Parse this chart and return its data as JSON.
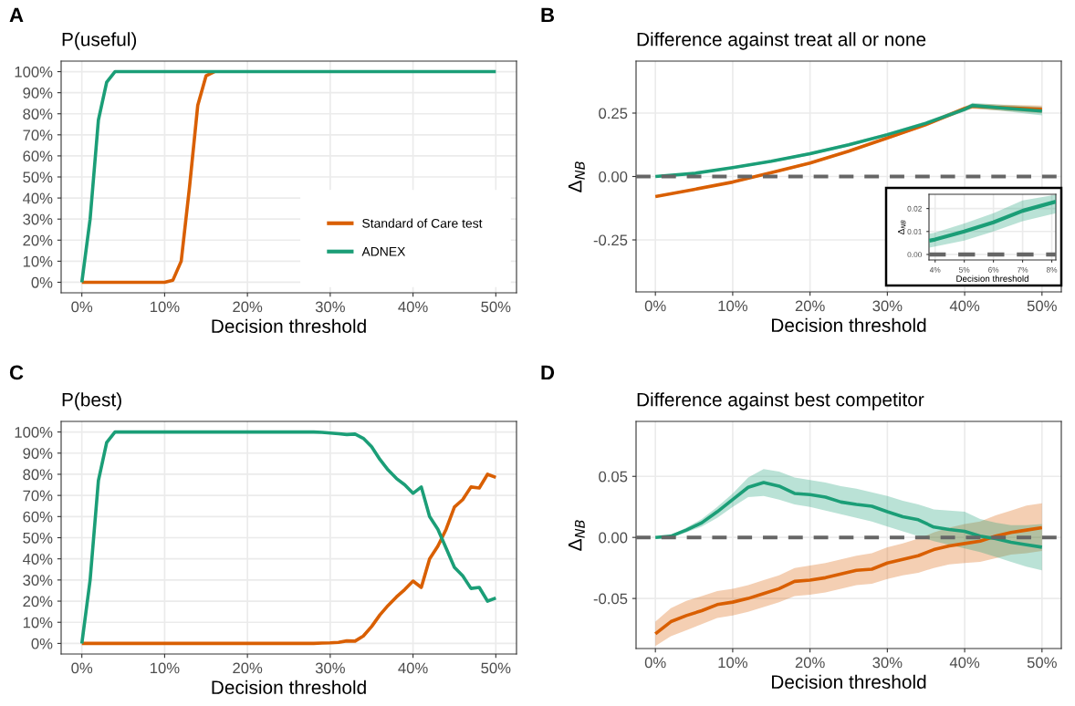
{
  "chart_data": [
    {
      "type": "line",
      "title": "P(useful)",
      "xlabel": "Decision threshold",
      "annotations": [
        "A"
      ],
      "legend": "bottom right",
      "grid": true,
      "xlim": [
        -2.5,
        52.5
      ],
      "xticks": [
        {
          "value": 0,
          "label": "0%"
        },
        {
          "value": 10,
          "label": "10%"
        },
        {
          "value": 20,
          "label": "20%"
        },
        {
          "value": 30,
          "label": "30%"
        },
        {
          "value": 40,
          "label": "40%"
        },
        {
          "value": 50,
          "label": "50%"
        }
      ],
      "ylim": [
        -5,
        105
      ],
      "yticks": [
        {
          "value": 0,
          "label": "0%"
        },
        {
          "value": 10,
          "label": "10%"
        },
        {
          "value": 20,
          "label": "20%"
        },
        {
          "value": 30,
          "label": "30%"
        },
        {
          "value": 40,
          "label": "40%"
        },
        {
          "value": 50,
          "label": "50%"
        },
        {
          "value": 60,
          "label": "60%"
        },
        {
          "value": 70,
          "label": "70%"
        },
        {
          "value": 80,
          "label": "80%"
        },
        {
          "value": 90,
          "label": "90%"
        },
        {
          "value": 100,
          "label": "100%"
        }
      ],
      "series": [
        {
          "name": "Standard of Care test",
          "color": "#d95f02",
          "x": [
            0,
            5,
            10,
            11,
            12,
            13,
            14,
            15,
            16
          ],
          "values": [
            0,
            0,
            0,
            1,
            10,
            45,
            84,
            98,
            100
          ]
        },
        {
          "name": "ADNEX",
          "color": "#1b9e77",
          "x": [
            0,
            1,
            2,
            3,
            4,
            5,
            50
          ],
          "values": [
            0,
            30,
            77,
            95,
            100,
            100,
            100
          ]
        }
      ]
    },
    {
      "type": "line",
      "title": "Difference against treat all or none",
      "xlabel": "Decision threshold",
      "ylabel": "Δ$_{NB}$",
      "annotations": [
        "B"
      ],
      "grid": true,
      "xlim": [
        -2.5,
        52.5
      ],
      "xticks": [
        {
          "value": 0,
          "label": "0%"
        },
        {
          "value": 10,
          "label": "10%"
        },
        {
          "value": 20,
          "label": "20%"
        },
        {
          "value": 30,
          "label": "30%"
        },
        {
          "value": 40,
          "label": "40%"
        },
        {
          "value": 50,
          "label": "50%"
        }
      ],
      "ylim": [
        -0.455,
        0.455
      ],
      "yticks": [
        {
          "value": -0.25,
          "label": "-0.25"
        },
        {
          "value": 0,
          "label": "0.00"
        },
        {
          "value": 0.25,
          "label": "0.25"
        }
      ],
      "ref_lines": [
        {
          "axis": "y",
          "value": 0,
          "color": "#666666",
          "line_style": "dashed"
        }
      ],
      "series": [
        {
          "color": "#d95f02",
          "x": [
            0,
            5,
            10,
            15,
            20,
            25,
            30,
            35,
            40,
            41,
            45,
            50
          ],
          "values": [
            -0.079,
            -0.051,
            -0.022,
            0.015,
            0.053,
            0.1,
            0.152,
            0.205,
            0.268,
            0.277,
            0.271,
            0.265
          ],
          "lower": [
            -0.083,
            -0.055,
            -0.026,
            0.01,
            0.048,
            0.095,
            0.146,
            0.198,
            0.259,
            0.267,
            0.259,
            0.25
          ],
          "upper": [
            -0.075,
            -0.047,
            -0.018,
            0.02,
            0.058,
            0.105,
            0.158,
            0.212,
            0.277,
            0.287,
            0.283,
            0.28
          ]
        },
        {
          "color": "#1b9e77",
          "x": [
            0,
            5,
            10,
            15,
            20,
            25,
            30,
            35,
            40,
            41,
            45,
            50
          ],
          "values": [
            0,
            0.012,
            0.035,
            0.06,
            0.09,
            0.125,
            0.165,
            0.21,
            0.265,
            0.28,
            0.27,
            0.258
          ],
          "lower": [
            -0.002,
            0.008,
            0.03,
            0.055,
            0.084,
            0.119,
            0.158,
            0.202,
            0.256,
            0.27,
            0.258,
            0.241
          ],
          "upper": [
            0.002,
            0.016,
            0.04,
            0.065,
            0.096,
            0.131,
            0.172,
            0.218,
            0.274,
            0.29,
            0.282,
            0.275
          ]
        }
      ]
    },
    {
      "type": "line",
      "title": "P(best)",
      "xlabel": "Decision threshold",
      "annotations": [
        "C"
      ],
      "grid": true,
      "xlim": [
        -2.5,
        52.5
      ],
      "xticks": [
        {
          "value": 0,
          "label": "0%"
        },
        {
          "value": 10,
          "label": "10%"
        },
        {
          "value": 20,
          "label": "20%"
        },
        {
          "value": 30,
          "label": "30%"
        },
        {
          "value": 40,
          "label": "40%"
        },
        {
          "value": 50,
          "label": "50%"
        }
      ],
      "ylim": [
        -5,
        105
      ],
      "yticks": [
        {
          "value": 0,
          "label": "0%"
        },
        {
          "value": 10,
          "label": "10%"
        },
        {
          "value": 20,
          "label": "20%"
        },
        {
          "value": 30,
          "label": "30%"
        },
        {
          "value": 40,
          "label": "40%"
        },
        {
          "value": 50,
          "label": "50%"
        },
        {
          "value": 60,
          "label": "60%"
        },
        {
          "value": 70,
          "label": "70%"
        },
        {
          "value": 80,
          "label": "80%"
        },
        {
          "value": 90,
          "label": "90%"
        },
        {
          "value": 100,
          "label": "100%"
        }
      ],
      "series": [
        {
          "color": "#d95f02",
          "x": [
            0,
            28,
            29,
            30,
            31,
            32,
            33,
            34,
            35,
            36,
            37,
            38,
            39,
            40,
            41,
            42,
            43,
            44,
            45,
            46,
            47,
            48,
            49,
            50
          ],
          "values": [
            0,
            0,
            0.2,
            0.3,
            0.5,
            1.2,
            1.1,
            3.5,
            8,
            13.5,
            18,
            22,
            25.5,
            29.5,
            26.5,
            40,
            46,
            54,
            64.5,
            68,
            74,
            73.5,
            80,
            78.5
          ]
        },
        {
          "color": "#1b9e77",
          "x": [
            0,
            1,
            2,
            3,
            4,
            28,
            29,
            30,
            31,
            32,
            33,
            34,
            35,
            36,
            37,
            38,
            39,
            40,
            41,
            42,
            43,
            44,
            45,
            46,
            47,
            48,
            49,
            50
          ],
          "values": [
            0,
            30,
            77,
            95,
            100,
            100,
            99.8,
            99.5,
            99.2,
            98.8,
            99,
            97,
            93,
            87,
            82,
            78,
            75,
            71,
            74,
            60,
            54,
            45,
            36,
            32,
            26,
            26.5,
            20,
            21.5
          ]
        }
      ]
    },
    {
      "type": "line",
      "title": "Difference against best competitor",
      "xlabel": "Decision threshold",
      "ylabel": "Δ$_{NB}$",
      "annotations": [
        "D"
      ],
      "grid": true,
      "xlim": [
        -2.5,
        52.5
      ],
      "xticks": [
        {
          "value": 0,
          "label": "0%"
        },
        {
          "value": 10,
          "label": "10%"
        },
        {
          "value": 20,
          "label": "20%"
        },
        {
          "value": 30,
          "label": "30%"
        },
        {
          "value": 40,
          "label": "40%"
        },
        {
          "value": 50,
          "label": "50%"
        }
      ],
      "ylim": [
        -0.091,
        0.095
      ],
      "yticks": [
        {
          "value": -0.05,
          "label": "-0.05"
        },
        {
          "value": 0,
          "label": "0.00"
        },
        {
          "value": 0.05,
          "label": "0.05"
        }
      ],
      "ref_lines": [
        {
          "axis": "y",
          "value": 0,
          "color": "#666666",
          "line_style": "dashed"
        }
      ],
      "series": [
        {
          "color": "#d95f02",
          "x": [
            0,
            2,
            4,
            6,
            8,
            10,
            12,
            14,
            16,
            18,
            20,
            22,
            24,
            26,
            28,
            30,
            32,
            34,
            36,
            38,
            40,
            42,
            44,
            46,
            48,
            50
          ],
          "values": [
            -0.079,
            -0.069,
            -0.064,
            -0.06,
            -0.055,
            -0.053,
            -0.05,
            -0.046,
            -0.042,
            -0.036,
            -0.035,
            -0.033,
            -0.03,
            -0.027,
            -0.026,
            -0.021,
            -0.018,
            -0.015,
            -0.01,
            -0.007,
            -0.005,
            -0.003,
            0.001,
            0.004,
            0.006,
            0.008
          ],
          "lower": [
            -0.089,
            -0.081,
            -0.076,
            -0.071,
            -0.066,
            -0.064,
            -0.061,
            -0.057,
            -0.053,
            -0.048,
            -0.047,
            -0.045,
            -0.042,
            -0.039,
            -0.038,
            -0.034,
            -0.031,
            -0.029,
            -0.025,
            -0.022,
            -0.021,
            -0.02,
            -0.017,
            -0.014,
            -0.013,
            -0.011
          ],
          "upper": [
            -0.069,
            -0.058,
            -0.052,
            -0.048,
            -0.044,
            -0.042,
            -0.039,
            -0.035,
            -0.031,
            -0.025,
            -0.023,
            -0.021,
            -0.018,
            -0.015,
            -0.013,
            -0.008,
            -0.005,
            -0.001,
            0.004,
            0.008,
            0.011,
            0.013,
            0.018,
            0.022,
            0.026,
            0.028
          ]
        },
        {
          "color": "#1b9e77",
          "x": [
            0,
            2,
            4,
            6,
            8,
            10,
            12,
            14,
            16,
            18,
            20,
            22,
            24,
            26,
            28,
            30,
            32,
            34,
            36,
            38,
            40,
            42,
            44,
            46,
            48,
            50
          ],
          "values": [
            0,
            0.001,
            0.006,
            0.012,
            0.021,
            0.031,
            0.041,
            0.045,
            0.042,
            0.036,
            0.035,
            0.033,
            0.029,
            0.027,
            0.0255,
            0.021,
            0.017,
            0.0145,
            0.0085,
            0.0065,
            0.005,
            0.001,
            -0.001,
            -0.004,
            -0.006,
            -0.008
          ],
          "lower": [
            0,
            0,
            0.004,
            0.009,
            0.016,
            0.025,
            0.033,
            0.034,
            0.031,
            0.027,
            0.025,
            0.022,
            0.019,
            0.016,
            0.013,
            0.009,
            0.005,
            0.001,
            -0.003,
            -0.006,
            -0.009,
            -0.012,
            -0.016,
            -0.02,
            -0.024,
            -0.027
          ],
          "upper": [
            0,
            0.002,
            0.008,
            0.015,
            0.025,
            0.036,
            0.049,
            0.056,
            0.054,
            0.049,
            0.047,
            0.045,
            0.042,
            0.04,
            0.037,
            0.034,
            0.03,
            0.027,
            0.023,
            0.022,
            0.021,
            0.015,
            0.012,
            0.01,
            0.01,
            0.011
          ]
        }
      ]
    },
    {
      "type": "line",
      "xlabel": "Decision threshold",
      "ylabel": "Δ$_{NB}$",
      "grid": true,
      "xlim": [
        3.79,
        8.14
      ],
      "xticks": [
        {
          "value": 4,
          "label": "4%"
        },
        {
          "value": 5,
          "label": "5%"
        },
        {
          "value": 6,
          "label": "6%"
        },
        {
          "value": 7,
          "label": "7%"
        },
        {
          "value": 8,
          "label": "8%"
        }
      ],
      "ylim": [
        -0.0024,
        0.0262
      ],
      "yticks": [
        {
          "value": 0,
          "label": "0.00"
        },
        {
          "value": 0.01,
          "label": "0.01"
        },
        {
          "value": 0.02,
          "label": "0.02"
        }
      ],
      "ref_lines": [
        {
          "axis": "y",
          "value": 0,
          "color": "#666666",
          "line_style": "dashed"
        }
      ],
      "series": [
        {
          "color": "#1b9e77",
          "x": [
            3.8,
            4,
            5,
            6,
            7,
            8.14
          ],
          "values": [
            0.006,
            0.0065,
            0.01,
            0.014,
            0.019,
            0.023
          ],
          "lower": [
            0.003,
            0.0035,
            0.006,
            0.01,
            0.0145,
            0.018
          ],
          "upper": [
            0.009,
            0.0095,
            0.0135,
            0.018,
            0.0235,
            0.026
          ]
        }
      ]
    }
  ]
}
